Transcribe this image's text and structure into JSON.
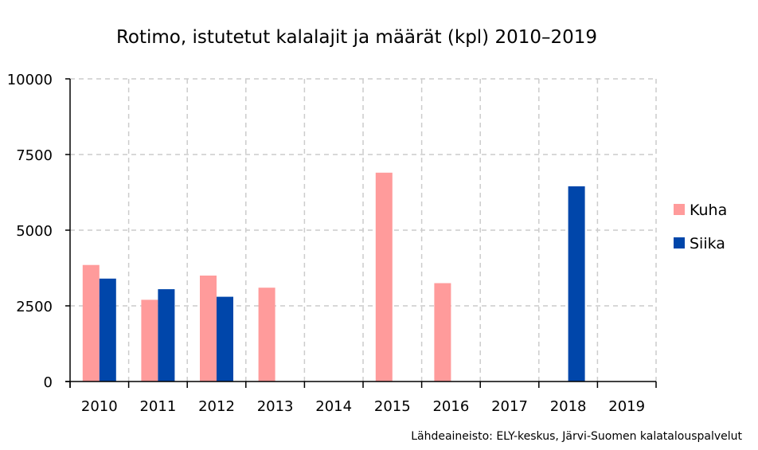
{
  "chart_data": {
    "type": "bar",
    "title": "Rotimo, istutetut kalalajit ja määrät (kpl) 2010–2019",
    "xlabel": "",
    "ylabel": "",
    "categories": [
      "2010",
      "2011",
      "2012",
      "2013",
      "2014",
      "2015",
      "2016",
      "2017",
      "2018",
      "2019"
    ],
    "series": [
      {
        "name": "Kuha",
        "color": "#ff9b9b",
        "values": [
          3850,
          2700,
          3500,
          3100,
          0,
          6900,
          3250,
          0,
          0,
          0
        ]
      },
      {
        "name": "Siika",
        "color": "#0046aa",
        "values": [
          3400,
          3050,
          2800,
          0,
          0,
          0,
          0,
          0,
          6450,
          0
        ]
      }
    ],
    "ylim": [
      0,
      10000
    ],
    "yticks": [
      0,
      2500,
      5000,
      7500,
      10000
    ],
    "grid": true,
    "legend_position": "right",
    "source": "Lähdeaineisto: ELY-keskus, Järvi-Suomen kalatalouspalvelut"
  }
}
